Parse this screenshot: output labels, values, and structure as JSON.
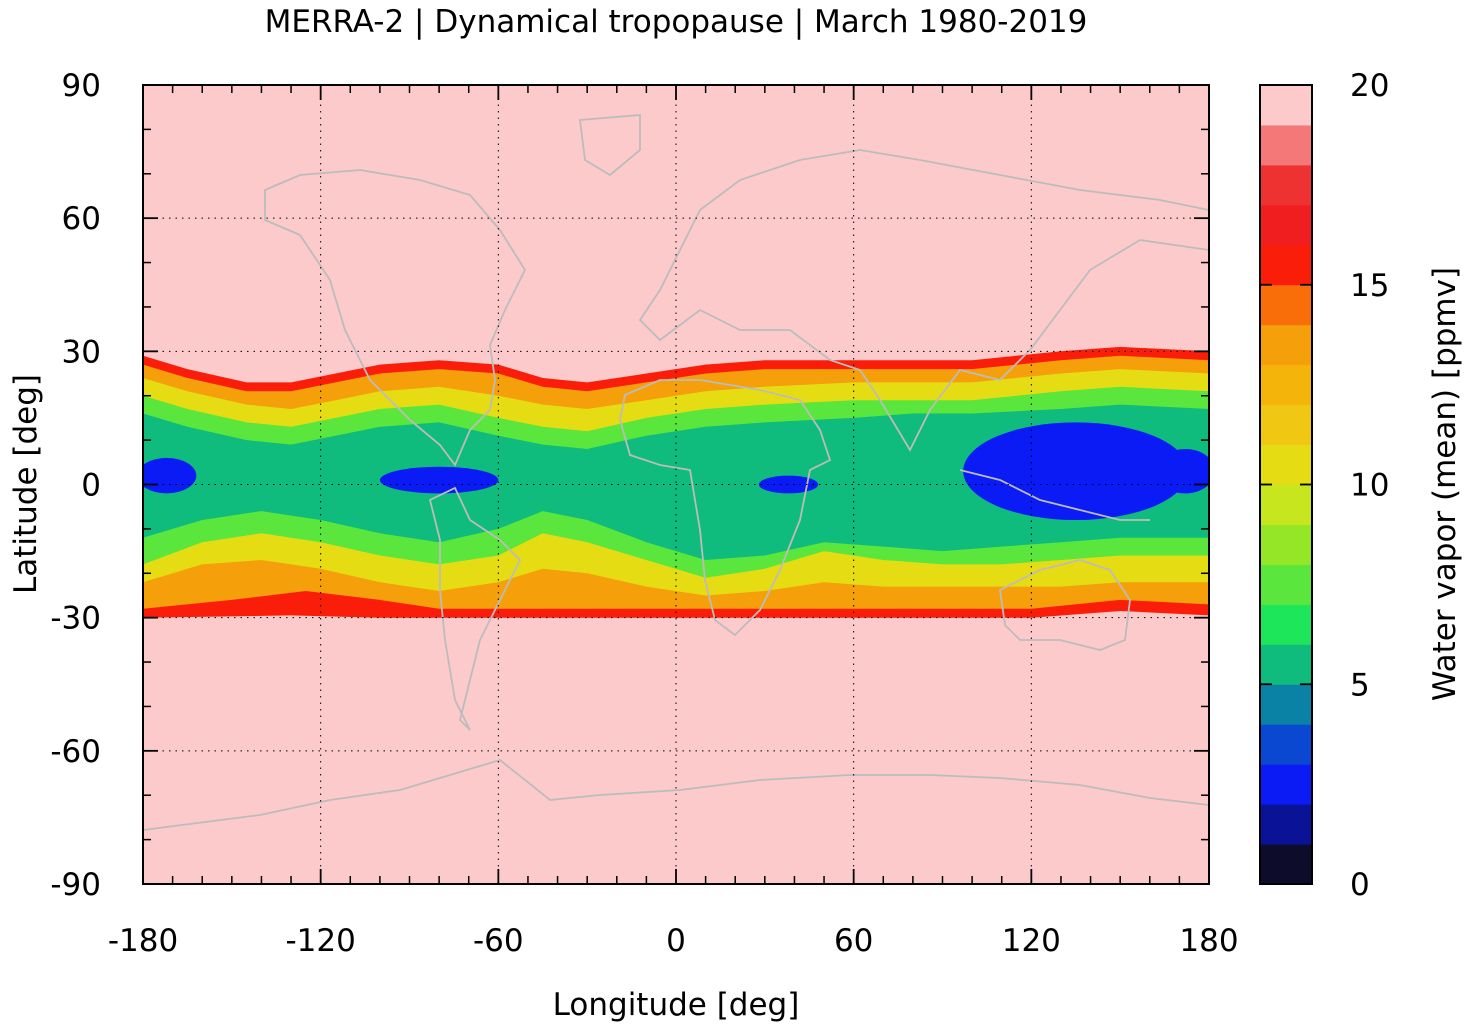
{
  "chart_data": {
    "type": "heatmap",
    "title": "MERRA-2 | Dynamical tropopause | March 1980-2019",
    "xlabel": "Longitude [deg]",
    "ylabel": "Latitude [deg]",
    "xlim": [
      -180,
      180
    ],
    "ylim": [
      -90,
      90
    ],
    "xticks": [
      -180,
      -120,
      -60,
      0,
      60,
      120,
      180
    ],
    "yticks": [
      90,
      60,
      30,
      0,
      -30,
      -60,
      -90
    ],
    "grid": true,
    "background_value": 20,
    "colorbar": {
      "label": "Water vapor (mean) [ppmv]",
      "range": [
        0,
        20
      ],
      "ticks": [
        20,
        15,
        10,
        5,
        0
      ],
      "levels": [
        {
          "from": 0,
          "to": 1,
          "color": "#0d0d2b"
        },
        {
          "from": 1,
          "to": 2,
          "color": "#0a1296"
        },
        {
          "from": 2,
          "to": 3,
          "color": "#0a1bf5"
        },
        {
          "from": 3,
          "to": 4,
          "color": "#0b48d2"
        },
        {
          "from": 4,
          "to": 5,
          "color": "#0a82a5"
        },
        {
          "from": 5,
          "to": 6,
          "color": "#0fbb7d"
        },
        {
          "from": 6,
          "to": 7,
          "color": "#1ee65a"
        },
        {
          "from": 7,
          "to": 8,
          "color": "#5ae63c"
        },
        {
          "from": 8,
          "to": 9,
          "color": "#96e628"
        },
        {
          "from": 9,
          "to": 10,
          "color": "#c8e61e"
        },
        {
          "from": 10,
          "to": 11,
          "color": "#e6dc14"
        },
        {
          "from": 11,
          "to": 12,
          "color": "#f0c814"
        },
        {
          "from": 12,
          "to": 13,
          "color": "#f5b40a"
        },
        {
          "from": 13,
          "to": 14,
          "color": "#f5a00a"
        },
        {
          "from": 14,
          "to": 15,
          "color": "#fa6e0a"
        },
        {
          "from": 15,
          "to": 16,
          "color": "#fa1e0a"
        },
        {
          "from": 16,
          "to": 17,
          "color": "#f01e1e"
        },
        {
          "from": 17,
          "to": 18,
          "color": "#ee3232"
        },
        {
          "from": 18,
          "to": 19,
          "color": "#f47878"
        },
        {
          "from": 19,
          "to": 20,
          "color": "#fccaca"
        }
      ]
    },
    "fields": [
      {
        "level": 15,
        "north_lat": [
          [
            -180,
            29
          ],
          [
            -165,
            26
          ],
          [
            -145,
            23
          ],
          [
            -130,
            23
          ],
          [
            -115,
            25
          ],
          [
            -100,
            27
          ],
          [
            -80,
            28
          ],
          [
            -60,
            27
          ],
          [
            -45,
            24
          ],
          [
            -30,
            23
          ],
          [
            -10,
            25
          ],
          [
            10,
            27
          ],
          [
            30,
            28
          ],
          [
            60,
            28
          ],
          [
            80,
            28
          ],
          [
            100,
            28
          ],
          [
            130,
            30
          ],
          [
            150,
            31
          ],
          [
            180,
            30
          ]
        ],
        "south_lat": [
          [
            -180,
            -30
          ],
          [
            -130,
            -29.5
          ],
          [
            -100,
            -30
          ],
          [
            -60,
            -30
          ],
          [
            0,
            -30
          ],
          [
            60,
            -30
          ],
          [
            120,
            -30
          ],
          [
            150,
            -28.5
          ],
          [
            180,
            -29.5
          ]
        ]
      },
      {
        "level": 13,
        "north_lat": [
          [
            -180,
            27
          ],
          [
            -165,
            24
          ],
          [
            -145,
            21
          ],
          [
            -130,
            21
          ],
          [
            -115,
            23
          ],
          [
            -100,
            25
          ],
          [
            -80,
            26
          ],
          [
            -60,
            25
          ],
          [
            -45,
            22
          ],
          [
            -30,
            21
          ],
          [
            -10,
            23
          ],
          [
            10,
            25
          ],
          [
            30,
            26
          ],
          [
            60,
            26
          ],
          [
            80,
            26
          ],
          [
            100,
            26
          ],
          [
            130,
            28
          ],
          [
            150,
            29
          ],
          [
            180,
            28
          ]
        ],
        "south_lat": [
          [
            -180,
            -28
          ],
          [
            -150,
            -26
          ],
          [
            -125,
            -24
          ],
          [
            -100,
            -26
          ],
          [
            -80,
            -28
          ],
          [
            -60,
            -28
          ],
          [
            -30,
            -28
          ],
          [
            0,
            -28
          ],
          [
            30,
            -28
          ],
          [
            60,
            -28
          ],
          [
            90,
            -28
          ],
          [
            120,
            -28
          ],
          [
            150,
            -26
          ],
          [
            180,
            -27
          ]
        ]
      },
      {
        "level": 10,
        "north_lat": [
          [
            -180,
            24
          ],
          [
            -165,
            21
          ],
          [
            -145,
            18
          ],
          [
            -130,
            17
          ],
          [
            -115,
            19
          ],
          [
            -100,
            21
          ],
          [
            -80,
            22
          ],
          [
            -60,
            20
          ],
          [
            -45,
            18
          ],
          [
            -30,
            17
          ],
          [
            -10,
            19
          ],
          [
            10,
            21
          ],
          [
            30,
            22
          ],
          [
            60,
            23
          ],
          [
            80,
            23
          ],
          [
            100,
            23
          ],
          [
            130,
            25
          ],
          [
            150,
            26
          ],
          [
            180,
            25
          ]
        ],
        "south_lat": [
          [
            -180,
            -22
          ],
          [
            -160,
            -18
          ],
          [
            -140,
            -17
          ],
          [
            -120,
            -19
          ],
          [
            -100,
            -22
          ],
          [
            -80,
            -24
          ],
          [
            -60,
            -22
          ],
          [
            -45,
            -19
          ],
          [
            -30,
            -20
          ],
          [
            -10,
            -23
          ],
          [
            10,
            -25
          ],
          [
            30,
            -24
          ],
          [
            50,
            -22
          ],
          [
            70,
            -23
          ],
          [
            90,
            -23
          ],
          [
            110,
            -23
          ],
          [
            130,
            -23
          ],
          [
            150,
            -22
          ],
          [
            180,
            -22
          ]
        ]
      },
      {
        "level": 7,
        "north_lat": [
          [
            -180,
            20
          ],
          [
            -165,
            17
          ],
          [
            -145,
            14
          ],
          [
            -130,
            13
          ],
          [
            -115,
            15
          ],
          [
            -100,
            17
          ],
          [
            -80,
            18
          ],
          [
            -60,
            15
          ],
          [
            -45,
            13
          ],
          [
            -30,
            12
          ],
          [
            -10,
            15
          ],
          [
            10,
            17
          ],
          [
            30,
            18
          ],
          [
            60,
            19
          ],
          [
            80,
            19
          ],
          [
            100,
            19
          ],
          [
            130,
            21
          ],
          [
            150,
            22
          ],
          [
            180,
            21
          ]
        ],
        "south_lat": [
          [
            -180,
            -18
          ],
          [
            -160,
            -13
          ],
          [
            -140,
            -11
          ],
          [
            -120,
            -13
          ],
          [
            -100,
            -16
          ],
          [
            -80,
            -18
          ],
          [
            -60,
            -16
          ],
          [
            -45,
            -11
          ],
          [
            -30,
            -13
          ],
          [
            -10,
            -17
          ],
          [
            10,
            -21
          ],
          [
            30,
            -19
          ],
          [
            50,
            -15
          ],
          [
            70,
            -17
          ],
          [
            90,
            -18
          ],
          [
            110,
            -18
          ],
          [
            130,
            -17
          ],
          [
            150,
            -16
          ],
          [
            180,
            -16
          ]
        ]
      },
      {
        "level": 5,
        "north_lat": [
          [
            -180,
            16
          ],
          [
            -165,
            13
          ],
          [
            -145,
            10
          ],
          [
            -130,
            9
          ],
          [
            -115,
            11
          ],
          [
            -100,
            13
          ],
          [
            -80,
            14
          ],
          [
            -60,
            11
          ],
          [
            -45,
            9
          ],
          [
            -30,
            8
          ],
          [
            -10,
            11
          ],
          [
            10,
            13
          ],
          [
            30,
            14
          ],
          [
            60,
            15
          ],
          [
            80,
            16
          ],
          [
            100,
            16
          ],
          [
            130,
            17
          ],
          [
            150,
            18
          ],
          [
            180,
            17
          ]
        ],
        "south_lat": [
          [
            -180,
            -12
          ],
          [
            -160,
            -8
          ],
          [
            -140,
            -6
          ],
          [
            -120,
            -8
          ],
          [
            -100,
            -11
          ],
          [
            -80,
            -13
          ],
          [
            -60,
            -10
          ],
          [
            -45,
            -6
          ],
          [
            -30,
            -8
          ],
          [
            -10,
            -13
          ],
          [
            10,
            -17
          ],
          [
            30,
            -16
          ],
          [
            50,
            -13
          ],
          [
            70,
            -14
          ],
          [
            90,
            -15
          ],
          [
            110,
            -14
          ],
          [
            130,
            -13
          ],
          [
            150,
            -12
          ],
          [
            180,
            -12
          ]
        ]
      }
    ],
    "minima": [
      {
        "level": 2,
        "lon": -172,
        "lat": 2,
        "rx": 10,
        "ry": 4
      },
      {
        "level": 2,
        "lon": -80,
        "lat": 1,
        "rx": 20,
        "ry": 3
      },
      {
        "level": 2,
        "lon": 38,
        "lat": 0,
        "rx": 10,
        "ry": 2
      },
      {
        "level": 2,
        "lon": 135,
        "lat": 3,
        "rx": 38,
        "ry": 11
      },
      {
        "level": 2,
        "lon": 172,
        "lat": 3,
        "rx": 10,
        "ry": 5
      }
    ]
  }
}
